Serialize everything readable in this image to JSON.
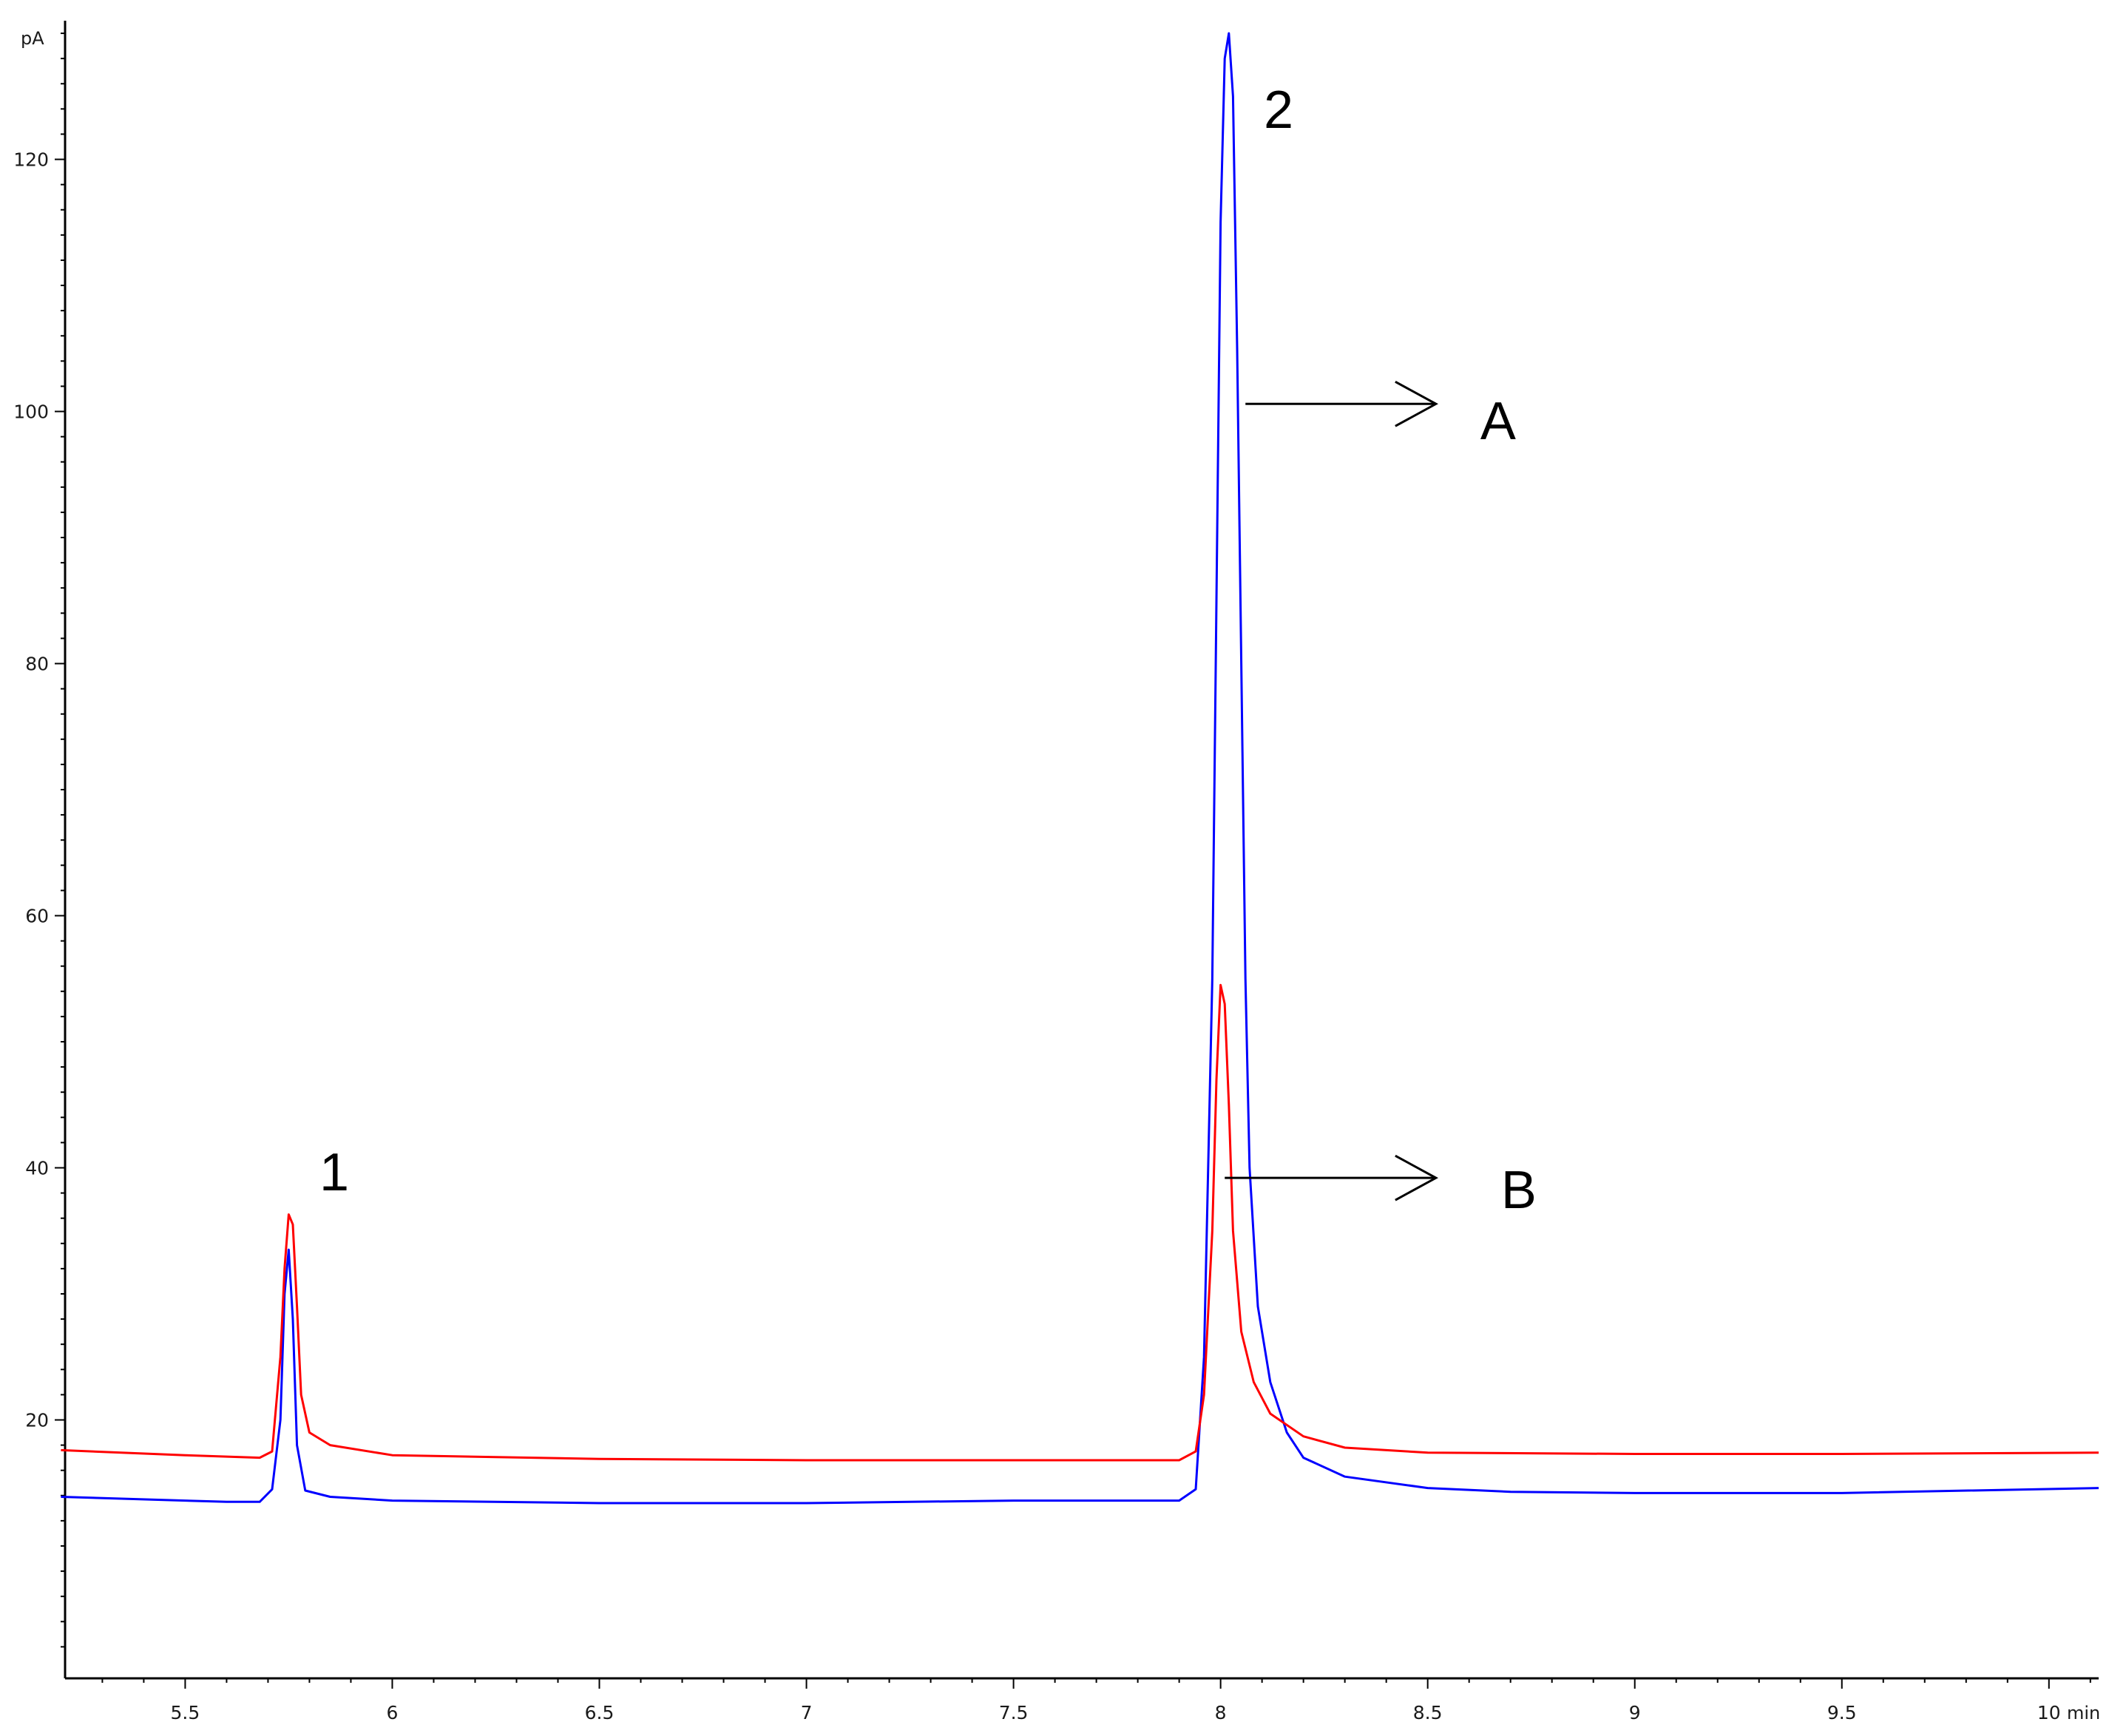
{
  "chart_data": {
    "type": "line",
    "title": "",
    "xlabel": "min",
    "ylabel": "pA",
    "xlim": [
      5.21,
      10.12
    ],
    "ylim": [
      -0.5,
      131
    ],
    "x_ticks": [
      {
        "value": 5.5,
        "label": "5.5"
      },
      {
        "value": 6,
        "label": "6"
      },
      {
        "value": 6.5,
        "label": "6.5"
      },
      {
        "value": 7,
        "label": "7"
      },
      {
        "value": 7.5,
        "label": "7.5"
      },
      {
        "value": 8,
        "label": "8"
      },
      {
        "value": 8.5,
        "label": "8.5"
      },
      {
        "value": 9,
        "label": "9"
      },
      {
        "value": 9.5,
        "label": "9.5"
      },
      {
        "value": 10,
        "label": "10"
      }
    ],
    "y_ticks": [
      {
        "value": 20,
        "label": "20"
      },
      {
        "value": 40,
        "label": "40"
      },
      {
        "value": 60,
        "label": "60"
      },
      {
        "value": 80,
        "label": "80"
      },
      {
        "value": 100,
        "label": "100"
      },
      {
        "value": 120,
        "label": "120"
      }
    ],
    "grid": false,
    "series": [
      {
        "color": "#0000ff",
        "points": [
          [
            5.2,
            13.9
          ],
          [
            5.5,
            13.6
          ],
          [
            5.6,
            13.5
          ],
          [
            5.68,
            13.5
          ],
          [
            5.71,
            14.5
          ],
          [
            5.73,
            20
          ],
          [
            5.74,
            30
          ],
          [
            5.75,
            33.5
          ],
          [
            5.76,
            28
          ],
          [
            5.77,
            18
          ],
          [
            5.79,
            14.4
          ],
          [
            5.85,
            13.9
          ],
          [
            6.0,
            13.6
          ],
          [
            6.5,
            13.4
          ],
          [
            7.0,
            13.4
          ],
          [
            7.5,
            13.6
          ],
          [
            7.75,
            13.6
          ],
          [
            7.9,
            13.6
          ],
          [
            7.94,
            14.5
          ],
          [
            7.96,
            25
          ],
          [
            7.98,
            55
          ],
          [
            7.99,
            85
          ],
          [
            8.0,
            115
          ],
          [
            8.01,
            128
          ],
          [
            8.02,
            130
          ],
          [
            8.03,
            125
          ],
          [
            8.04,
            105
          ],
          [
            8.05,
            80
          ],
          [
            8.06,
            55
          ],
          [
            8.07,
            40
          ],
          [
            8.09,
            29
          ],
          [
            8.12,
            23
          ],
          [
            8.16,
            19
          ],
          [
            8.2,
            17
          ],
          [
            8.3,
            15.5
          ],
          [
            8.5,
            14.6
          ],
          [
            8.7,
            14.3
          ],
          [
            9.0,
            14.2
          ],
          [
            9.5,
            14.2
          ],
          [
            10.12,
            14.6
          ]
        ]
      },
      {
        "color": "#ff0000",
        "points": [
          [
            5.2,
            17.6
          ],
          [
            5.5,
            17.2
          ],
          [
            5.68,
            17.0
          ],
          [
            5.71,
            17.5
          ],
          [
            5.73,
            25
          ],
          [
            5.74,
            32
          ],
          [
            5.75,
            36.3
          ],
          [
            5.76,
            35.5
          ],
          [
            5.77,
            29
          ],
          [
            5.78,
            22
          ],
          [
            5.8,
            19
          ],
          [
            5.85,
            18
          ],
          [
            6.0,
            17.2
          ],
          [
            6.5,
            16.9
          ],
          [
            7.0,
            16.8
          ],
          [
            7.5,
            16.8
          ],
          [
            7.9,
            16.8
          ],
          [
            7.94,
            17.5
          ],
          [
            7.96,
            22
          ],
          [
            7.98,
            35
          ],
          [
            7.99,
            47
          ],
          [
            8.0,
            54.5
          ],
          [
            8.01,
            53
          ],
          [
            8.02,
            45
          ],
          [
            8.03,
            35
          ],
          [
            8.05,
            27
          ],
          [
            8.08,
            23
          ],
          [
            8.12,
            20.5
          ],
          [
            8.2,
            18.7
          ],
          [
            8.3,
            17.8
          ],
          [
            8.5,
            17.4
          ],
          [
            9.0,
            17.3
          ],
          [
            9.5,
            17.3
          ],
          [
            10.12,
            17.4
          ]
        ]
      }
    ],
    "annotations": [
      {
        "text": "1",
        "x": 5.86,
        "y": 38.2,
        "size": 72
      },
      {
        "text": "2",
        "x": 8.14,
        "y": 122.5,
        "size": 72
      },
      {
        "text": "A",
        "x": 8.67,
        "y": 97.8,
        "size": 72
      },
      {
        "text": "B",
        "x": 8.72,
        "y": 36.8,
        "size": 72
      }
    ],
    "arrows": [
      {
        "from": [
          8.06,
          100.6
        ],
        "to": [
          8.52,
          100.6
        ]
      },
      {
        "from": [
          8.01,
          39.2
        ],
        "to": [
          8.52,
          39.2
        ]
      }
    ]
  }
}
